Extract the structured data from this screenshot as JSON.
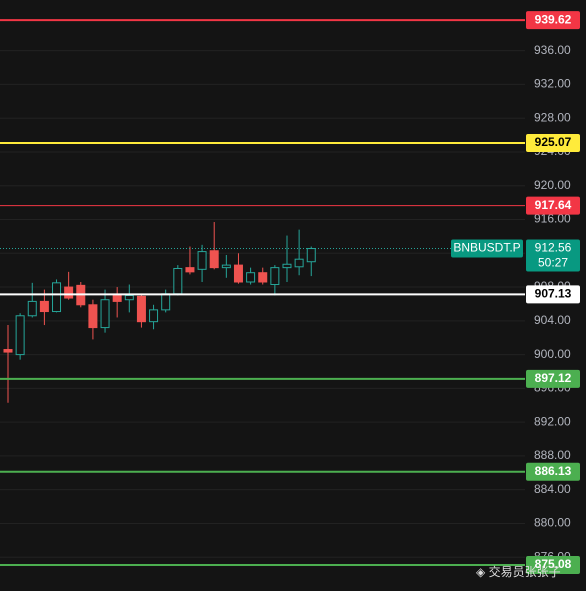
{
  "chart_data": {
    "type": "candlestick",
    "symbol": "BNBUSDT.P",
    "countdown": "50:27",
    "current_price": 912.56,
    "up_color": "#26a69a",
    "down_color": "#ef5350",
    "ylim": [
      872,
      942
    ],
    "yticks": [
      {
        "value": 876,
        "label": "876.00"
      },
      {
        "value": 880,
        "label": "880.00"
      },
      {
        "value": 884,
        "label": "884.00"
      },
      {
        "value": 888,
        "label": "888.00"
      },
      {
        "value": 892,
        "label": "892.00"
      },
      {
        "value": 896,
        "label": "896.00"
      },
      {
        "value": 900,
        "label": "900.00"
      },
      {
        "value": 904,
        "label": "904.00"
      },
      {
        "value": 908,
        "label": "908.00"
      },
      {
        "value": 912,
        "label": "912.00"
      },
      {
        "value": 916,
        "label": "916.00"
      },
      {
        "value": 920,
        "label": "920.00"
      },
      {
        "value": 924,
        "label": "924.00"
      },
      {
        "value": 928,
        "label": "928.00"
      },
      {
        "value": 932,
        "label": "932.00"
      },
      {
        "value": 936,
        "label": "936.00"
      }
    ],
    "grid": true,
    "open": [
      900.6,
      900.0,
      904.6,
      906.3,
      905.1,
      908.0,
      908.2,
      905.9,
      903.2,
      907.0,
      906.5,
      906.9,
      903.9,
      905.3,
      907.2,
      910.3,
      910.1,
      912.3,
      910.3,
      910.6,
      908.6,
      909.7,
      908.3,
      910.3,
      910.4,
      911.0
    ],
    "high": [
      903.5,
      904.9,
      908.5,
      907.7,
      908.9,
      909.8,
      908.6,
      906.5,
      907.7,
      908.0,
      908.3,
      907.1,
      905.9,
      907.7,
      910.6,
      912.8,
      913.0,
      915.7,
      911.8,
      912.0,
      910.3,
      910.3,
      910.6,
      914.1,
      914.8,
      912.8
    ],
    "low": [
      894.3,
      899.4,
      904.4,
      903.5,
      905.0,
      906.5,
      905.6,
      901.8,
      902.6,
      904.4,
      905.0,
      903.2,
      903.0,
      905.0,
      907.0,
      909.5,
      908.6,
      910.1,
      909.1,
      908.4,
      908.3,
      908.3,
      907.0,
      908.6,
      909.4,
      909.3
    ],
    "close": [
      900.3,
      904.6,
      906.3,
      905.1,
      908.5,
      906.7,
      905.9,
      903.2,
      906.5,
      906.3,
      907.0,
      903.9,
      905.3,
      907.2,
      910.2,
      909.8,
      912.2,
      910.3,
      910.6,
      908.6,
      909.7,
      908.6,
      910.3,
      910.7,
      911.3,
      912.56
    ],
    "levels": [
      {
        "value": 939.62,
        "color": "#f23645",
        "text_color": "#ffffff",
        "width": 2
      },
      {
        "value": 925.07,
        "color": "#ffeb3b",
        "text_color": "#000000",
        "width": 2
      },
      {
        "value": 917.64,
        "color": "#f23645",
        "text_color": "#ffffff",
        "width": 1
      },
      {
        "value": 907.13,
        "color": "#ffffff",
        "text_color": "#000000",
        "width": 2
      },
      {
        "value": 897.12,
        "color": "#4caf50",
        "text_color": "#ffffff",
        "width": 2
      },
      {
        "value": 886.13,
        "color": "#4caf50",
        "text_color": "#ffffff",
        "width": 2
      },
      {
        "value": 875.08,
        "color": "#4caf50",
        "text_color": "#ffffff",
        "width": 2
      }
    ],
    "watermark": "◈ 交易员张张子"
  }
}
